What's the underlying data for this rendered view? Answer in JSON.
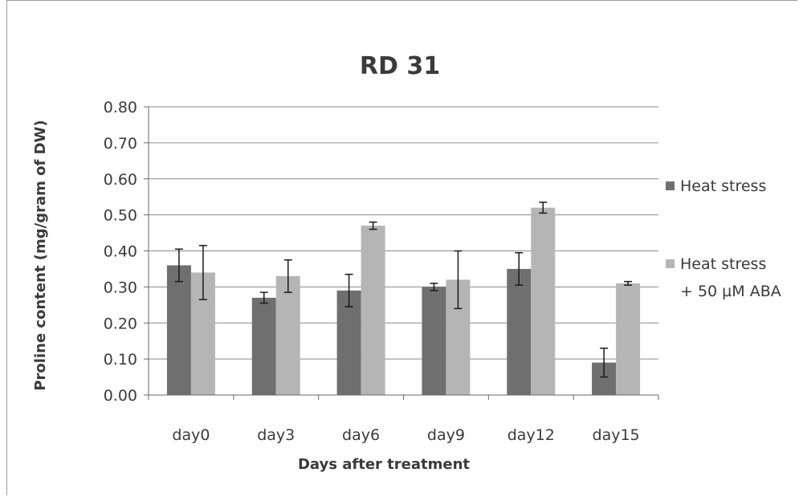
{
  "chart_data": {
    "type": "bar",
    "title": "RD 31",
    "xlabel": "Days after treatment",
    "ylabel": "Proline content (mg/gram of DW)",
    "categories": [
      "day0",
      "day3",
      "day6",
      "day9",
      "day12",
      "day15"
    ],
    "ylim": [
      0,
      0.8
    ],
    "yticks": [
      "0.00",
      "0.10",
      "0.20",
      "0.30",
      "0.40",
      "0.50",
      "0.60",
      "0.70",
      "0.80"
    ],
    "grid": true,
    "legend_position": "right",
    "series": [
      {
        "name": "Heat stress",
        "color": "#6f6f6f",
        "values": [
          0.36,
          0.27,
          0.29,
          0.3,
          0.35,
          0.09
        ],
        "errors": [
          0.045,
          0.015,
          0.045,
          0.01,
          0.045,
          0.04
        ]
      },
      {
        "name": "Heat stress\n+ 50 µM ABA",
        "legend_lines": [
          "Heat stress",
          "+ 50 µM ABA"
        ],
        "color": "#b5b5b5",
        "values": [
          0.34,
          0.33,
          0.47,
          0.32,
          0.52,
          0.31
        ],
        "errors": [
          0.075,
          0.045,
          0.01,
          0.08,
          0.015,
          0.005
        ]
      }
    ]
  }
}
